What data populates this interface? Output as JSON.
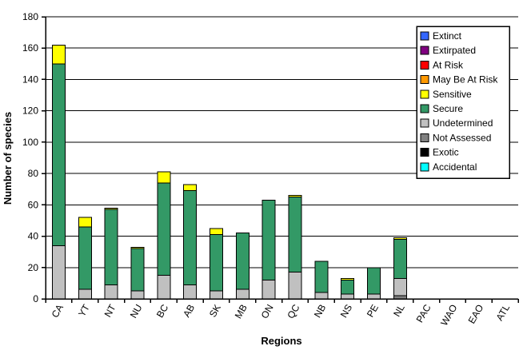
{
  "chart_data": {
    "type": "bar",
    "stacked": true,
    "title": "",
    "xlabel": "Regions",
    "ylabel": "Number of species",
    "ylim": [
      0,
      180
    ],
    "ytick_step": 20,
    "yticks": [
      0,
      20,
      40,
      60,
      80,
      100,
      120,
      140,
      160,
      180
    ],
    "grid": true,
    "legend_position": "top-right",
    "categories": [
      "CA",
      "YT",
      "NT",
      "NU",
      "BC",
      "AB",
      "SK",
      "MB",
      "ON",
      "QC",
      "NB",
      "NS",
      "PE",
      "NL",
      "PAC",
      "WAO",
      "EAO",
      "ATL"
    ],
    "series": [
      {
        "name": "Extinct",
        "color": "#3366FF",
        "values": [
          0,
          0,
          0,
          0,
          0,
          0,
          0,
          0,
          0,
          0,
          0,
          0,
          0,
          0,
          0,
          0,
          0,
          0
        ]
      },
      {
        "name": "Extirpated",
        "color": "#800080",
        "values": [
          0,
          0,
          0,
          0,
          0,
          0,
          0,
          0,
          0,
          0,
          0,
          0,
          0,
          0,
          0,
          0,
          0,
          0
        ]
      },
      {
        "name": "At Risk",
        "color": "#FF0000",
        "values": [
          0,
          0,
          0,
          0,
          0,
          0,
          0,
          0,
          0,
          0,
          0,
          0,
          0,
          0,
          0,
          0,
          0,
          0
        ]
      },
      {
        "name": "May Be At Risk",
        "color": "#FF9900",
        "values": [
          0,
          0,
          0,
          0,
          0,
          0,
          0,
          0,
          0,
          0,
          0,
          0,
          0,
          0,
          0,
          0,
          0,
          0
        ]
      },
      {
        "name": "Sensitive",
        "color": "#FFFF00",
        "values": [
          12,
          6,
          1,
          1,
          7,
          4,
          4,
          0,
          0,
          1,
          0,
          1,
          0,
          1,
          0,
          0,
          0,
          0
        ]
      },
      {
        "name": "Secure",
        "color": "#339966",
        "values": [
          116,
          40,
          48,
          27,
          59,
          60,
          36,
          36,
          51,
          48,
          20,
          9,
          17,
          25,
          0,
          0,
          0,
          0
        ]
      },
      {
        "name": "Undetermined",
        "color": "#C0C0C0",
        "values": [
          34,
          6,
          9,
          5,
          15,
          9,
          5,
          6,
          12,
          17,
          4,
          3,
          3,
          11,
          0,
          0,
          0,
          0
        ]
      },
      {
        "name": "Not Assessed",
        "color": "#808080",
        "values": [
          0,
          0,
          0,
          0,
          0,
          0,
          0,
          0,
          0,
          0,
          0,
          0,
          0,
          2,
          0,
          0,
          0,
          0
        ]
      },
      {
        "name": "Exotic",
        "color": "#000000",
        "values": [
          0,
          0,
          0,
          0,
          0,
          0,
          0,
          0,
          0,
          0,
          0,
          0,
          0,
          0,
          0,
          0,
          0,
          0
        ]
      },
      {
        "name": "Accidental",
        "color": "#00FFFF",
        "values": [
          0,
          0,
          0,
          0,
          0,
          0,
          0,
          0,
          0,
          0,
          0,
          0,
          0,
          0,
          0,
          0,
          0,
          0
        ]
      }
    ],
    "stack_order_bottom_to_top": [
      "Accidental",
      "Exotic",
      "Not Assessed",
      "Undetermined",
      "Secure",
      "Sensitive",
      "May Be At Risk",
      "At Risk",
      "Extirpated",
      "Extinct"
    ],
    "totals": {
      "CA": 162,
      "YT": 52,
      "NT": 58,
      "NU": 33,
      "BC": 81,
      "AB": 73,
      "SK": 45,
      "MB": 42,
      "ON": 63,
      "QC": 66,
      "NB": 24,
      "NS": 13,
      "PE": 20,
      "NL": 39,
      "PAC": 0,
      "WAO": 0,
      "EAO": 0,
      "ATL": 0
    }
  }
}
